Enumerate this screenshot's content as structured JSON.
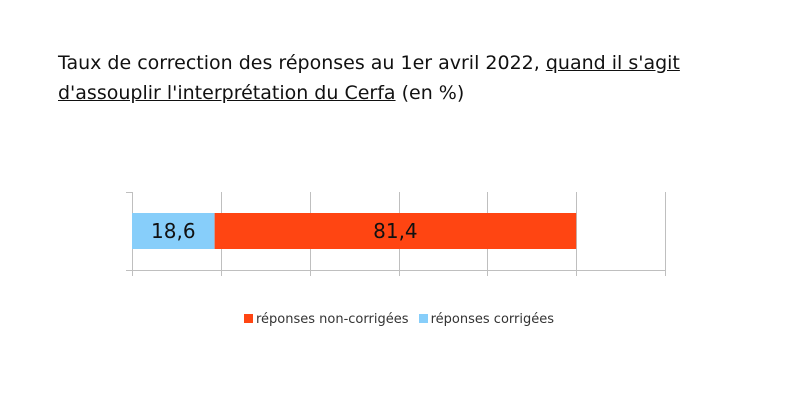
{
  "title": {
    "part1": "Taux de correction des réponses au 1er avril 2022, ",
    "part2_underlined": "quand il s'agit d'assouplir l'interprétation du Cerfa",
    "part3": " (en %)"
  },
  "chart_data": {
    "type": "bar",
    "orientation": "horizontal",
    "stacked": true,
    "categories": [
      ""
    ],
    "series": [
      {
        "name": "réponses corrigées",
        "values": [
          18.6
        ],
        "color": "#87CEFA"
      },
      {
        "name": "réponses non-corrigées",
        "values": [
          81.4
        ],
        "color": "#FF4512"
      }
    ],
    "xlim": [
      0,
      120
    ],
    "x_tick_step": 20,
    "grid": true,
    "tick_labels_shown": false,
    "legend_position": "bottom",
    "legend_order": [
      "réponses non-corrigées",
      "réponses corrigées"
    ]
  }
}
